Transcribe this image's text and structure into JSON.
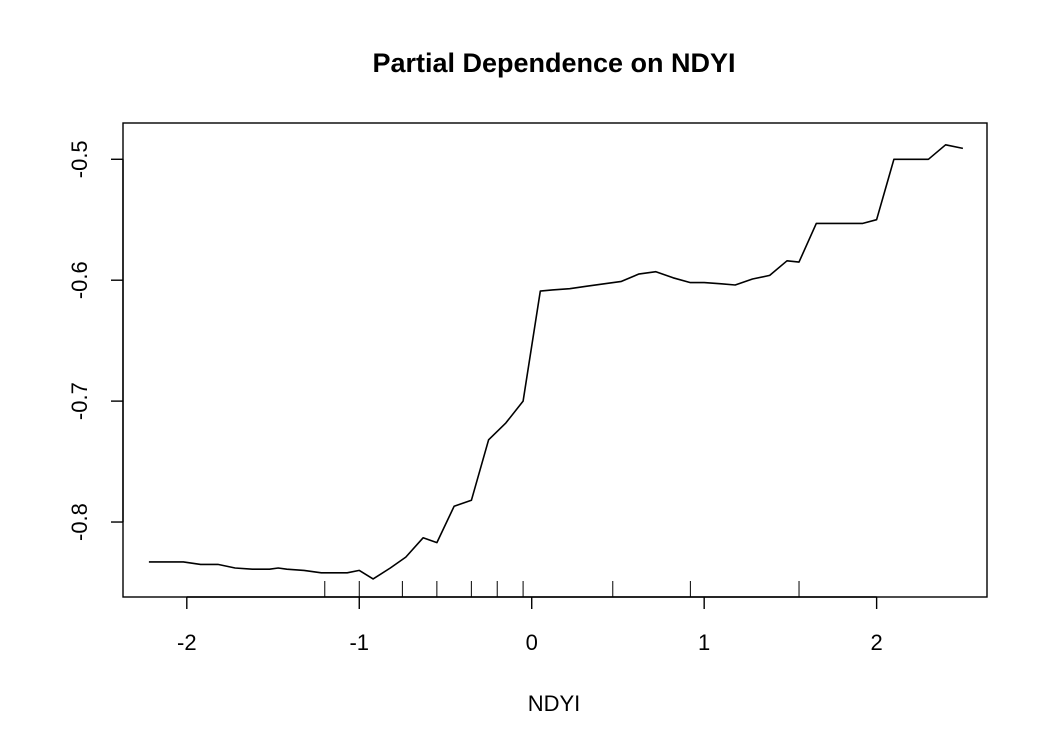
{
  "chart_data": {
    "type": "line",
    "title": "Partial Dependence on NDYI",
    "xlabel": "NDYI",
    "ylabel": "",
    "xlim": [
      -2.37,
      2.64
    ],
    "ylim": [
      -0.862,
      -0.47
    ],
    "xticks": [
      -2,
      -1,
      0,
      1,
      2
    ],
    "xtick_labels": [
      "-2",
      "-1",
      "0",
      "1",
      "2"
    ],
    "yticks": [
      -0.8,
      -0.7,
      -0.6,
      -0.5
    ],
    "ytick_labels": [
      "-0.8",
      "-0.7",
      "-0.6",
      "-0.5"
    ],
    "grid": false,
    "line_color": "#000000",
    "series": [
      {
        "x": [
          -2.22,
          -2.12,
          -2.02,
          -1.92,
          -1.82,
          -1.72,
          -1.62,
          -1.52,
          -1.47,
          -1.42,
          -1.32,
          -1.22,
          -1.17,
          -1.12,
          -1.07,
          -1.0,
          -0.92,
          -0.82,
          -0.73,
          -0.63,
          -0.55,
          -0.45,
          -0.35,
          -0.25,
          -0.15,
          -0.05,
          0.05,
          0.12,
          0.22,
          0.32,
          0.42,
          0.52,
          0.62,
          0.72,
          0.82,
          0.92,
          1.0,
          1.1,
          1.18,
          1.28,
          1.38,
          1.48,
          1.55,
          1.65,
          1.75,
          1.82,
          1.92,
          2.0,
          2.1,
          2.2,
          2.3,
          2.4,
          2.5
        ],
        "y": [
          -0.833,
          -0.833,
          -0.833,
          -0.835,
          -0.835,
          -0.838,
          -0.839,
          -0.839,
          -0.838,
          -0.839,
          -0.84,
          -0.842,
          -0.842,
          -0.842,
          -0.842,
          -0.84,
          -0.847,
          -0.838,
          -0.829,
          -0.813,
          -0.817,
          -0.787,
          -0.782,
          -0.732,
          -0.718,
          -0.7,
          -0.609,
          -0.608,
          -0.607,
          -0.605,
          -0.603,
          -0.601,
          -0.595,
          -0.593,
          -0.598,
          -0.602,
          -0.602,
          -0.603,
          -0.604,
          -0.599,
          -0.596,
          -0.584,
          -0.585,
          -0.553,
          -0.553,
          -0.553,
          -0.553,
          -0.55,
          -0.5,
          -0.5,
          -0.5,
          -0.488,
          -0.491
        ]
      }
    ],
    "rug": [
      -1.2,
      -1.0,
      -0.75,
      -0.55,
      -0.35,
      -0.2,
      -0.05,
      0.47,
      0.92,
      1.55
    ]
  }
}
